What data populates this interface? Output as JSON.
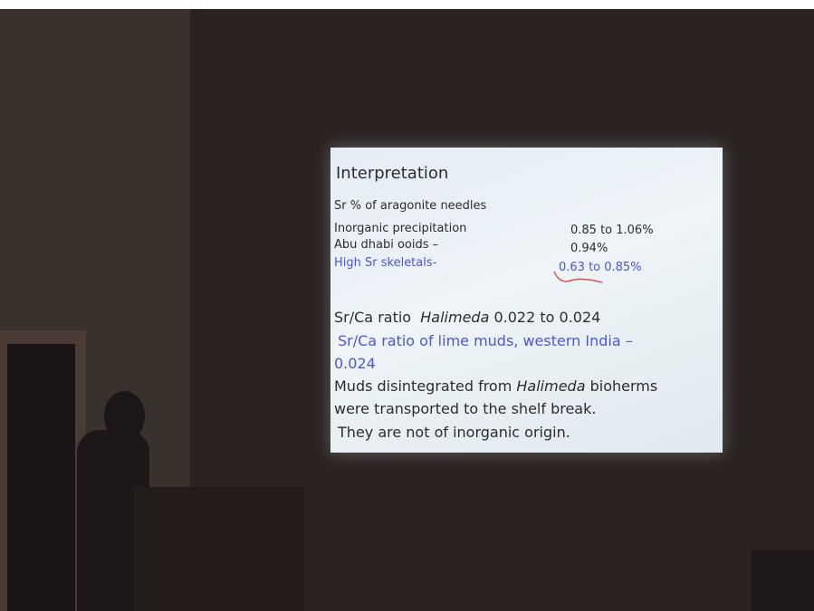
{
  "slide": {
    "title": "Interpretation",
    "heading": "Sr % of aragonite needles",
    "rows": [
      [
        "Inorganic precipitation",
        "0.85 to 1.06%"
      ],
      [
        "Abu dhabi ooids –",
        "0.94%"
      ],
      [
        "High Sr skeletals-",
        "0.63 to 0.85%"
      ]
    ],
    "ratio": {
      "label": "Sr/Ca ratio",
      "taxon": "Halimeda",
      "value": "0.022 to 0.024"
    },
    "lime_muds": [
      "Sr/Ca ratio of lime muds, western India –",
      "0.024"
    ],
    "conclusion": {
      "before": "Muds disintegrated from",
      "taxon": "Halimeda",
      "after": "bioherms",
      "line2": "were transported to the shelf break.",
      "line3": "They are not of inorganic origin."
    }
  }
}
